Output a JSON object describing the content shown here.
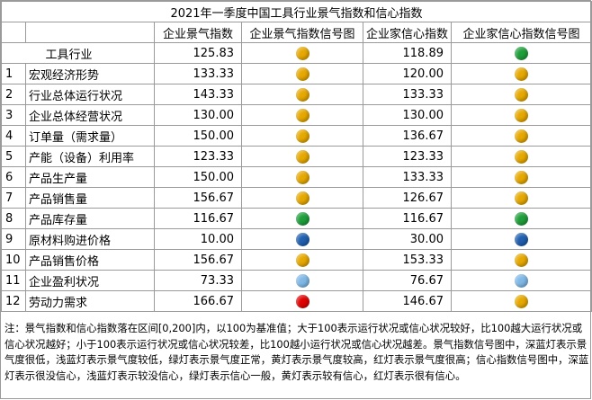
{
  "title": "2021年一季度中国工具行业景气指数和信心指数",
  "headers": [
    "企业景气指数",
    "企业景气指数信号图",
    "企业家信心指数",
    "企业家信心指数信号图"
  ],
  "group": {
    "name": "工具行业",
    "prosperity": "125.83",
    "prosperity_signal": "yellow",
    "confidence": "118.89",
    "confidence_signal": "green"
  },
  "rows": [
    {
      "idx": "1",
      "name": "宏观经济形势",
      "prosperity": "133.33",
      "prosperity_signal": "yellow",
      "confidence": "120.00",
      "confidence_signal": "yellow"
    },
    {
      "idx": "2",
      "name": "行业总体运行状况",
      "prosperity": "143.33",
      "prosperity_signal": "yellow",
      "confidence": "133.33",
      "confidence_signal": "yellow"
    },
    {
      "idx": "3",
      "name": "企业总体经营状况",
      "prosperity": "130.00",
      "prosperity_signal": "yellow",
      "confidence": "130.00",
      "confidence_signal": "yellow"
    },
    {
      "idx": "4",
      "name": "订单量（需求量）",
      "prosperity": "150.00",
      "prosperity_signal": "yellow",
      "confidence": "136.67",
      "confidence_signal": "yellow"
    },
    {
      "idx": "5",
      "name": "产能（设备）利用率",
      "prosperity": "123.33",
      "prosperity_signal": "yellow",
      "confidence": "123.33",
      "confidence_signal": "yellow"
    },
    {
      "idx": "6",
      "name": "产品生产量",
      "prosperity": "150.00",
      "prosperity_signal": "yellow",
      "confidence": "133.33",
      "confidence_signal": "yellow"
    },
    {
      "idx": "7",
      "name": "产品销售量",
      "prosperity": "156.67",
      "prosperity_signal": "yellow",
      "confidence": "126.67",
      "confidence_signal": "yellow"
    },
    {
      "idx": "8",
      "name": "产品库存量",
      "prosperity": "116.67",
      "prosperity_signal": "green",
      "confidence": "116.67",
      "confidence_signal": "green"
    },
    {
      "idx": "9",
      "name": "原材料购进价格",
      "prosperity": "10.00",
      "prosperity_signal": "dark-blue",
      "confidence": "30.00",
      "confidence_signal": "dark-blue"
    },
    {
      "idx": "10",
      "name": "产品销售价格",
      "prosperity": "156.67",
      "prosperity_signal": "yellow",
      "confidence": "153.33",
      "confidence_signal": "yellow"
    },
    {
      "idx": "11",
      "name": "企业盈利状况",
      "prosperity": "73.33",
      "prosperity_signal": "light-blue",
      "confidence": "76.67",
      "confidence_signal": "light-blue"
    },
    {
      "idx": "12",
      "name": "劳动力需求",
      "prosperity": "166.67",
      "prosperity_signal": "red",
      "confidence": "146.67",
      "confidence_signal": "yellow"
    }
  ],
  "signal_colors": {
    "yellow": "#e6a800",
    "green": "#1e9e3a",
    "dark-blue": "#1f5fae",
    "light-blue": "#7fb8e6",
    "red": "#e00000"
  },
  "note": "注：景气指数和信心指数落在区间[0,200]内，以100为基准值；大于100表示运行状况或信心状况较好，比100越大运行状况或信心状况越好；小于100表示运行状况或信心状况较差，比100越小运行状况或信心状况越差。景气指数信号图中，深蓝灯表示景气度很低，浅蓝灯表示景气度较低，绿灯表示景气度正常，黄灯表示景气度较高，红灯表示景气度很高；信心指数信号图中，深蓝灯表示很没信心，浅蓝灯表示较没信心，绿灯表示信心一般，黄灯表示较有信心，红灯表示很有信心。"
}
